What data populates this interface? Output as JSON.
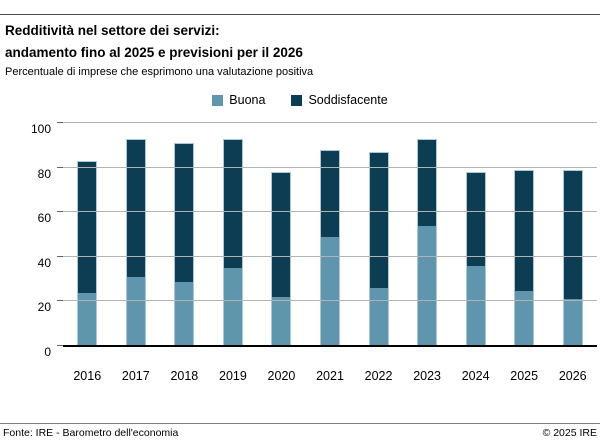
{
  "page": {
    "title_line1": "Redditività nel settore dei servizi:",
    "title_line2": "andamento fino al 2025 e previsioni per il 2026",
    "subtitle": "Percentuale di imprese che esprimono una valutazione positiva",
    "footer_source": "Fonte: IRE - Barometro dell'economia",
    "footer_copyright": "© 2025 IRE"
  },
  "colors": {
    "buona": "#5f96ad",
    "soddisfacente": "#0d3d52",
    "gridline": "#b3b3b3",
    "axis": "#000000",
    "bar_outline": "#aac8d6"
  },
  "chart_data": {
    "type": "bar",
    "stacked": true,
    "title": "Redditività nel settore dei servizi: andamento fino al 2025 e previsioni per il 2026",
    "subtitle": "Percentuale di imprese che esprimono una valutazione positiva",
    "categories": [
      "2016",
      "2017",
      "2018",
      "2019",
      "2020",
      "2021",
      "2022",
      "2023",
      "2024",
      "2025",
      "2026"
    ],
    "series": [
      {
        "name": "Buona",
        "color": "#5f96ad",
        "values": [
          24,
          31,
          29,
          35,
          22,
          49,
          26,
          54,
          36,
          25,
          21
        ]
      },
      {
        "name": "Soddisfacente",
        "color": "#0d3d52",
        "values": [
          59,
          62,
          62,
          58,
          56,
          39,
          61,
          39,
          42,
          54,
          58
        ]
      }
    ],
    "stacked_totals": [
      83,
      93,
      91,
      93,
      78,
      88,
      87,
      93,
      78,
      79,
      79
    ],
    "xlabel": "",
    "ylabel": "",
    "ylim": [
      0,
      100
    ],
    "yticks": [
      0,
      20,
      40,
      60,
      80,
      100
    ],
    "grid": true,
    "legend_position": "top-center",
    "source": "Fonte: IRE - Barometro dell'economia",
    "copyright": "© 2025 IRE"
  }
}
